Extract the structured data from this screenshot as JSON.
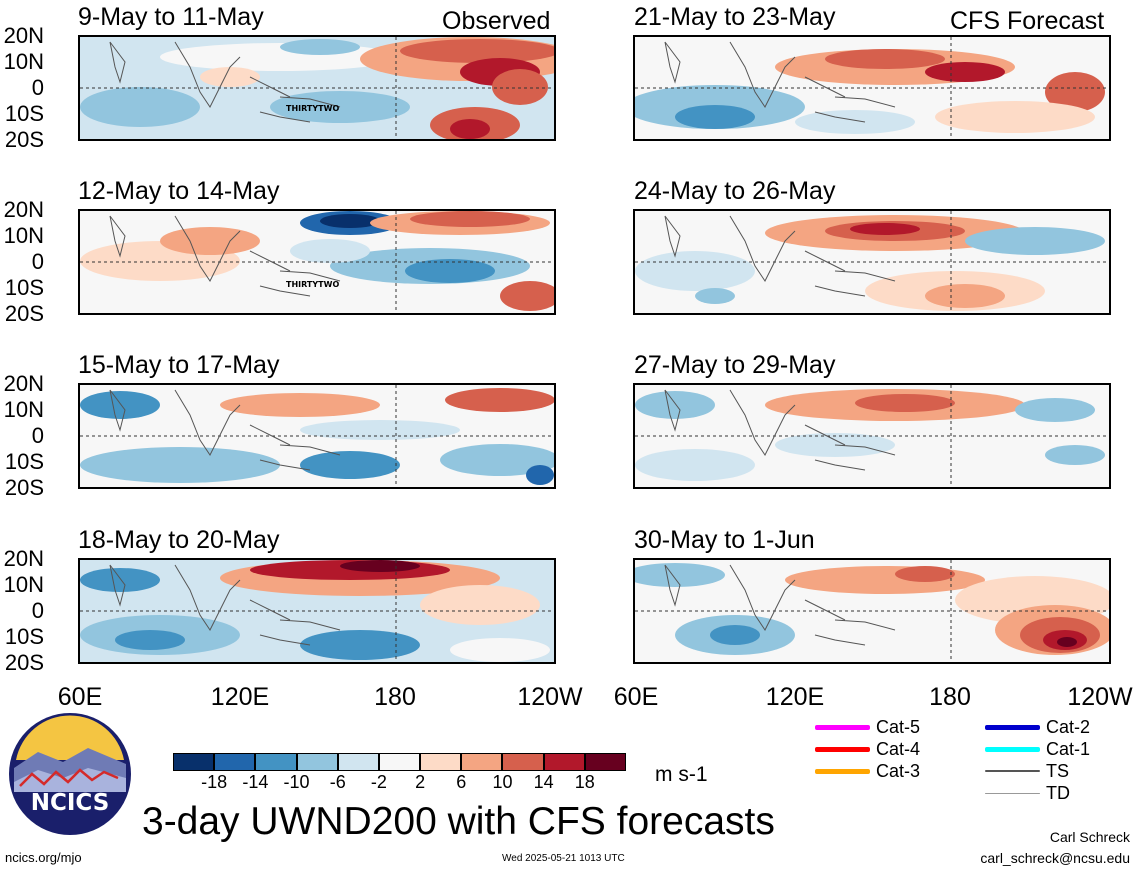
{
  "header": {
    "observed_label": "Observed",
    "forecast_label": "CFS Forecast"
  },
  "panels": [
    {
      "id": "obs1",
      "title": "9-May to 11-May",
      "storm": "THIRTYTWO"
    },
    {
      "id": "obs2",
      "title": "12-May to 14-May",
      "storm": "THIRTYTWO"
    },
    {
      "id": "obs3",
      "title": "15-May to 17-May",
      "storm": ""
    },
    {
      "id": "obs4",
      "title": "18-May to 20-May",
      "storm": ""
    },
    {
      "id": "fc1",
      "title": "21-May to 23-May",
      "storm": ""
    },
    {
      "id": "fc2",
      "title": "24-May to 26-May",
      "storm": ""
    },
    {
      "id": "fc3",
      "title": "27-May to 29-May",
      "storm": ""
    },
    {
      "id": "fc4",
      "title": "30-May to 1-Jun",
      "storm": ""
    }
  ],
  "axes": {
    "lat_ticks": [
      "20N",
      "10N",
      "0",
      "10S",
      "20S"
    ],
    "lon_ticks_left": [
      "60E",
      "120E",
      "180",
      "120W"
    ],
    "lon_ticks_right": [
      "60E",
      "120E",
      "180",
      "120W"
    ]
  },
  "colorbar": {
    "units": "m s-1",
    "labels": [
      "-18",
      "-14",
      "-10",
      "-6",
      "-2",
      "2",
      "6",
      "10",
      "14",
      "18"
    ],
    "colors": [
      "#08306b",
      "#2166ac",
      "#4393c3",
      "#92c5de",
      "#d1e5f0",
      "#f7f7f7",
      "#fddbc7",
      "#f4a582",
      "#d6604d",
      "#b2182b",
      "#67001f"
    ]
  },
  "legend": {
    "items": [
      {
        "label": "Cat-5",
        "color": "#ff00ff",
        "weight": 5
      },
      {
        "label": "Cat-4",
        "color": "#ff0000",
        "weight": 5
      },
      {
        "label": "Cat-3",
        "color": "#ffa500",
        "weight": 5
      },
      {
        "label": "Cat-2",
        "color": "#0000cd",
        "weight": 5
      },
      {
        "label": "Cat-1",
        "color": "#00ffff",
        "weight": 5
      },
      {
        "label": "TS",
        "color": "#555555",
        "weight": 2
      },
      {
        "label": "TD",
        "color": "#999999",
        "weight": 1
      }
    ]
  },
  "footer": {
    "logo_text": "NCICS",
    "main_title": "3-day UWND200 with CFS forecasts",
    "site": "ncics.org/mjo",
    "timestamp": "Wed 2025-05-21 1013 UTC",
    "author": "Carl Schreck",
    "email": "carl_schreck@ncsu.edu"
  }
}
